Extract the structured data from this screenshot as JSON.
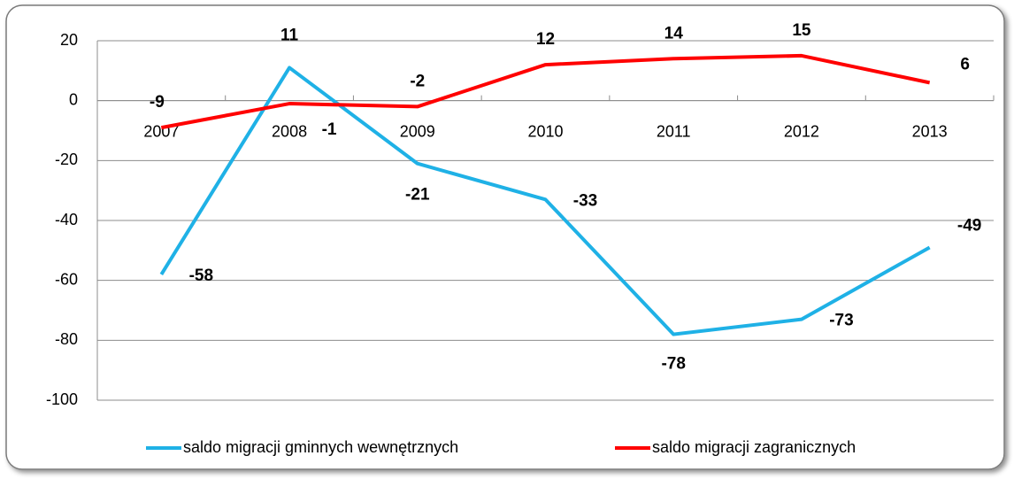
{
  "chart_data": {
    "type": "line",
    "categories": [
      "2007",
      "2008",
      "2009",
      "2010",
      "2011",
      "2012",
      "2013"
    ],
    "series": [
      {
        "name": "saldo migracji gminnych wewnętrznych",
        "color": "#1fb1e6",
        "values": [
          -58,
          11,
          -21,
          -33,
          -78,
          -73,
          -49
        ]
      },
      {
        "name": "saldo migracji zagranicznych",
        "color": "#ff0000",
        "values": [
          -9,
          -1,
          -2,
          12,
          14,
          15,
          6
        ]
      }
    ],
    "ylim": [
      -100,
      20
    ],
    "yticks": [
      -100,
      -80,
      -60,
      -40,
      -20,
      0,
      20
    ],
    "grid": true,
    "legend": "bottom"
  }
}
